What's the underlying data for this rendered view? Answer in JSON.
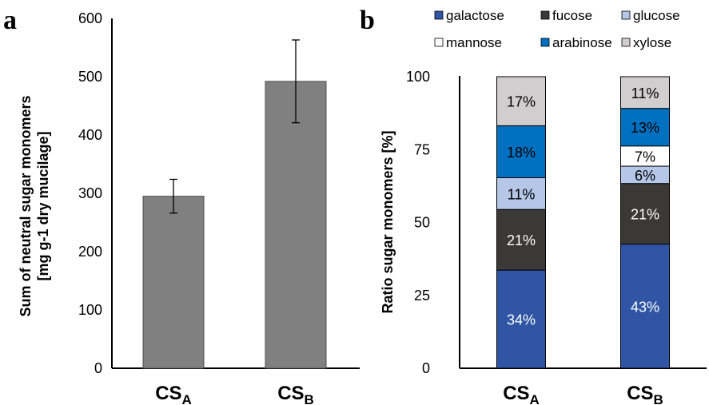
{
  "chart_data": [
    {
      "type": "bar",
      "panel_label": "a",
      "categories": [
        "CS_A",
        "CS_B"
      ],
      "category_display": [
        {
          "main": "CS",
          "sub": "A"
        },
        {
          "main": "CS",
          "sub": "B"
        }
      ],
      "values": [
        295,
        492
      ],
      "error_bars": [
        [
          266,
          324
        ],
        [
          421,
          563
        ]
      ],
      "ylabel_lines": [
        "Sum of neutral sugar monomers",
        "[mg g-1 dry mucilage]"
      ],
      "ylim": [
        0,
        600
      ],
      "yticks": [
        0,
        100,
        200,
        300,
        400,
        500,
        600
      ],
      "bar_color": "#808080",
      "grid": false
    },
    {
      "type": "bar",
      "stacked": true,
      "panel_label": "b",
      "categories": [
        "CS_A",
        "CS_B"
      ],
      "category_display": [
        {
          "main": "CS",
          "sub": "A"
        },
        {
          "main": "CS",
          "sub": "B"
        }
      ],
      "ylabel": "Ratio sugar monomers [%]",
      "ylim": [
        0,
        100
      ],
      "yticks": [
        0,
        25,
        50,
        75,
        100
      ],
      "legend_position": "top",
      "grid": false,
      "series": [
        {
          "name": "galactose",
          "color": "#2f55a4",
          "text_color": "#ffffff",
          "values": [
            34,
            43
          ],
          "labels": [
            "34%",
            "43%"
          ]
        },
        {
          "name": "fucose",
          "color": "#3b3838",
          "text_color": "#ffffff",
          "values": [
            21,
            21
          ],
          "labels": [
            "21%",
            "21%"
          ]
        },
        {
          "name": "glucose",
          "color": "#b4c7e7",
          "text_color": "#000000",
          "values": [
            11,
            6
          ],
          "labels": [
            "11%",
            "6%"
          ]
        },
        {
          "name": "mannose",
          "color": "#ffffff",
          "text_color": "#000000",
          "values": [
            0,
            7
          ],
          "labels": [
            "",
            "7%"
          ]
        },
        {
          "name": "arabinose",
          "color": "#0070c0",
          "text_color": "#000000",
          "values": [
            18,
            13
          ],
          "labels": [
            "18%",
            "13%"
          ]
        },
        {
          "name": "xylose",
          "color": "#d0cece",
          "text_color": "#000000",
          "values": [
            17,
            11
          ],
          "labels": [
            "17%",
            "11%"
          ]
        }
      ]
    }
  ]
}
